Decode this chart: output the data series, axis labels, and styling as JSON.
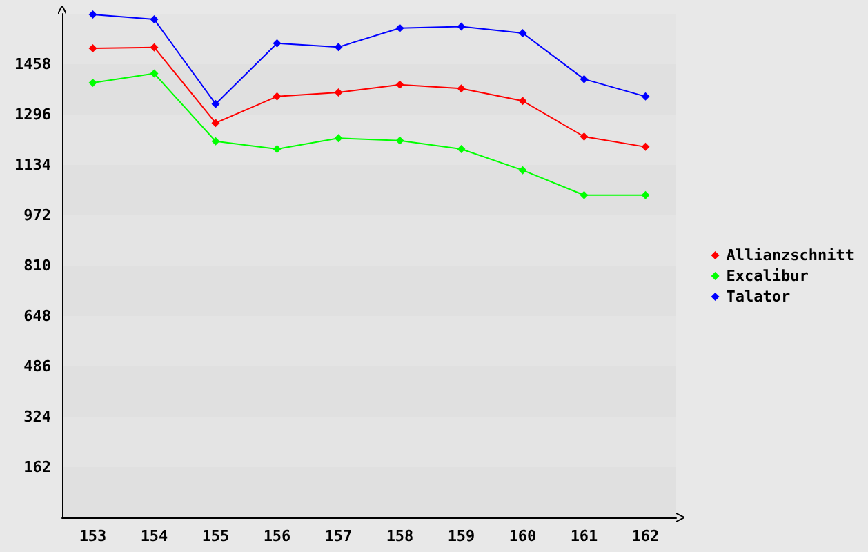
{
  "chart_data": {
    "type": "line",
    "categories": [
      "153",
      "154",
      "155",
      "156",
      "157",
      "158",
      "159",
      "160",
      "161",
      "162"
    ],
    "series": [
      {
        "name": "Allianzschnitt",
        "color": "#ff0000",
        "values": [
          1509,
          1512,
          1269,
          1354,
          1367,
          1392,
          1380,
          1340,
          1225,
          1192
        ]
      },
      {
        "name": "Excalibur",
        "color": "#00ff00",
        "values": [
          1398,
          1428,
          1210,
          1185,
          1220,
          1212,
          1185,
          1117,
          1037,
          1037
        ]
      },
      {
        "name": "Talator",
        "color": "#0000ff",
        "values": [
          1618,
          1602,
          1330,
          1525,
          1513,
          1574,
          1579,
          1558,
          1410,
          1354
        ]
      }
    ],
    "ylim": [
      0,
      1620
    ],
    "yticks": [
      162,
      324,
      486,
      648,
      810,
      972,
      1134,
      1296,
      1458
    ],
    "legend": "right",
    "marker": "diamond",
    "line_style": "solid"
  }
}
